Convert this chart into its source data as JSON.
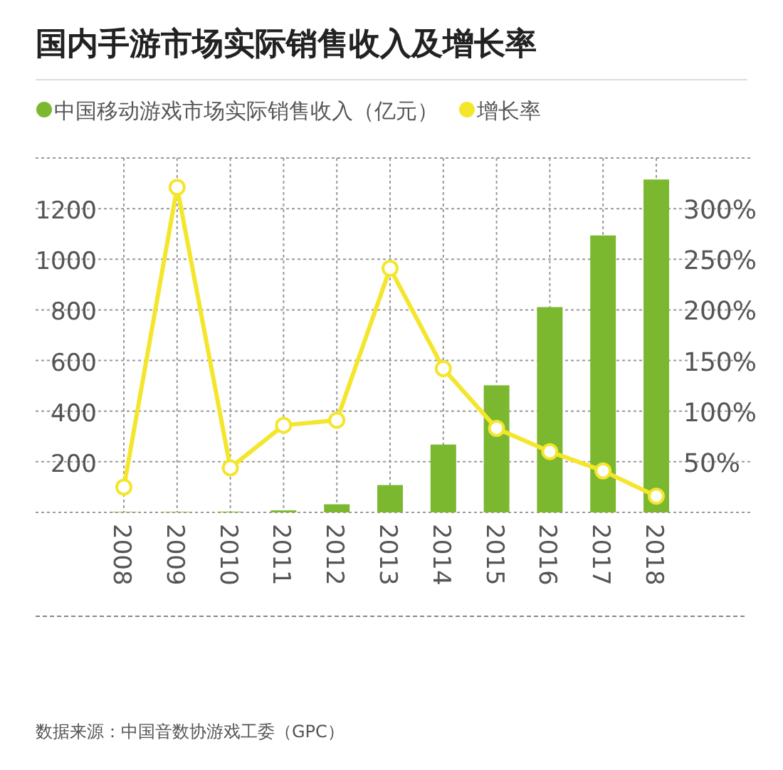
{
  "chart_data": {
    "type": "bar",
    "title": "国内手游市场实际销售收入及增长率",
    "categories": [
      "2008",
      "2009",
      "2010",
      "2011",
      "2012",
      "2013",
      "2014",
      "2015",
      "2016",
      "2017",
      "2018"
    ],
    "series": [
      {
        "name": "中国移动游戏市场实际销售收入（亿元）",
        "color": "#7cb82f",
        "values": [
          2,
          2,
          3,
          8,
          32,
          108,
          268,
          502,
          811,
          1094,
          1315
        ]
      },
      {
        "name": "增长率",
        "type": "line",
        "axis": "y2",
        "color": "#f3e62c",
        "marker": "circle",
        "values": [
          25,
          321,
          44,
          86,
          91,
          241,
          142,
          83,
          60,
          41,
          16
        ]
      }
    ],
    "ylim": [
      0,
      1400
    ],
    "yticks": [
      200,
      400,
      600,
      800,
      1000,
      1200
    ],
    "y2lim": [
      0,
      350
    ],
    "y2ticks": [
      {
        "value": 50,
        "label": "50%"
      },
      {
        "value": 100,
        "label": "100%"
      },
      {
        "value": 150,
        "label": "150%"
      },
      {
        "value": 200,
        "label": "200%"
      },
      {
        "value": 250,
        "label": "250%"
      },
      {
        "value": 300,
        "label": "300%"
      }
    ],
    "grid": true,
    "legend": "top left",
    "annotations": [
      "数据来源：中国音数协游戏工委（GPC）"
    ]
  }
}
